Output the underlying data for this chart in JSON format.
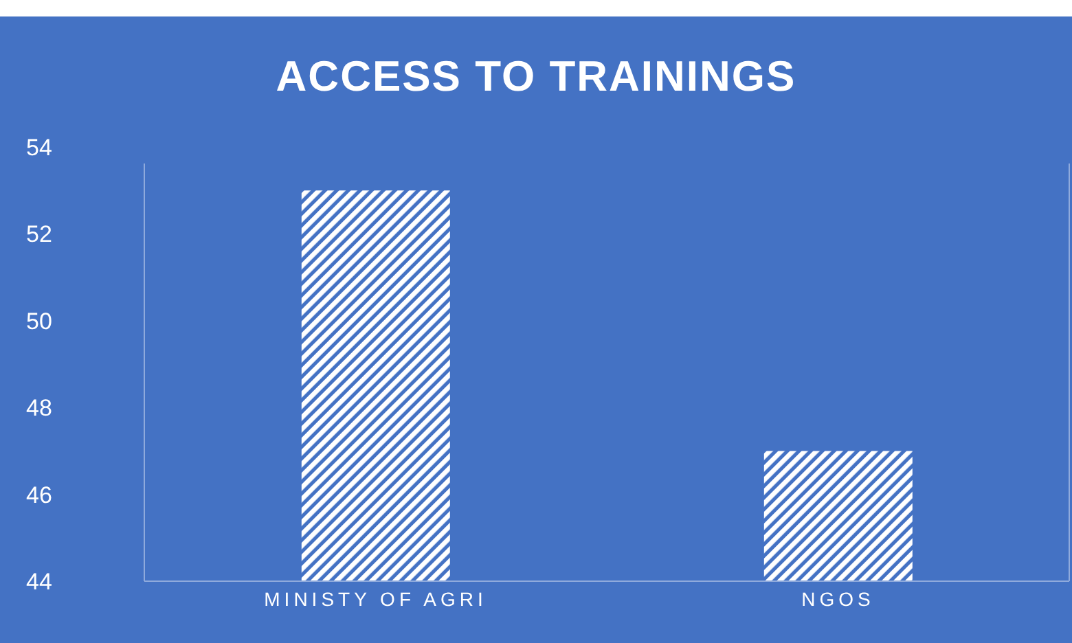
{
  "chart_data": {
    "type": "bar",
    "title": "ACCESS TO TRAININGS",
    "categories": [
      "MINISTY OF AGRI",
      "NGOS"
    ],
    "values": [
      53,
      47
    ],
    "color": "#ffffff",
    "ylim": [
      44,
      54
    ],
    "yticks": [
      44,
      46,
      48,
      50,
      52,
      54
    ]
  }
}
